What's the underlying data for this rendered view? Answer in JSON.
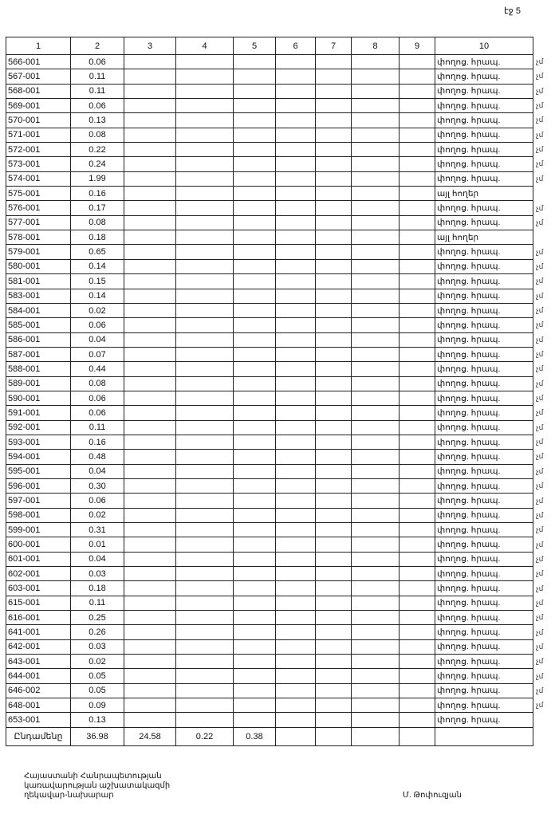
{
  "page_label": "էջ 5",
  "columns": [
    "1",
    "2",
    "3",
    "4",
    "5",
    "6",
    "7",
    "8",
    "9",
    "10"
  ],
  "rows": [
    {
      "code": "566-001",
      "area": "0.06",
      "type": "փողոց. հրապ.",
      "mark": "չմ"
    },
    {
      "code": "567-001",
      "area": "0.11",
      "type": "փողոց. հրապ.",
      "mark": "չմ"
    },
    {
      "code": "568-001",
      "area": "0.11",
      "type": "փողոց. հրապ.",
      "mark": "չմ"
    },
    {
      "code": "569-001",
      "area": "0.06",
      "type": "փողոց. հրապ.",
      "mark": "չմ"
    },
    {
      "code": "570-001",
      "area": "0.13",
      "type": "փողոց. հրապ.",
      "mark": "չմ"
    },
    {
      "code": "571-001",
      "area": "0.08",
      "type": "փողոց. հրապ.",
      "mark": "չմ"
    },
    {
      "code": "572-001",
      "area": "0.22",
      "type": "փողոց. հրապ.",
      "mark": "չմ"
    },
    {
      "code": "573-001",
      "area": "0.24",
      "type": "փողոց. հրապ.",
      "mark": "չմ"
    },
    {
      "code": "574-001",
      "area": "1.99",
      "type": "փողոց. հրապ.",
      "mark": "չմ"
    },
    {
      "code": "575-001",
      "area": "0.16",
      "type": "այլ հողեր",
      "mark": ""
    },
    {
      "code": "576-001",
      "area": "0.17",
      "type": "փողոց. հրապ.",
      "mark": "չմ"
    },
    {
      "code": "577-001",
      "area": "0.08",
      "type": "փողոց. հրապ.",
      "mark": "չմ"
    },
    {
      "code": "578-001",
      "area": "0.18",
      "type": "այլ հողեր",
      "mark": ""
    },
    {
      "code": "579-001",
      "area": "0.65",
      "type": "փողոց. հրապ.",
      "mark": "չմ"
    },
    {
      "code": "580-001",
      "area": "0.14",
      "type": "փողոց. հրապ.",
      "mark": "չմ"
    },
    {
      "code": "581-001",
      "area": "0.15",
      "type": "փողոց. հրապ.",
      "mark": "չմ"
    },
    {
      "code": "583-001",
      "area": "0.14",
      "type": "փողոց. հրապ.",
      "mark": "չմ"
    },
    {
      "code": "584-001",
      "area": "0.02",
      "type": "փողոց. հրապ.",
      "mark": "չմ"
    },
    {
      "code": "585-001",
      "area": "0.06",
      "type": "փողոց. հրապ.",
      "mark": "չմ"
    },
    {
      "code": "586-001",
      "area": "0.04",
      "type": "փողոց. հրապ.",
      "mark": "չմ"
    },
    {
      "code": "587-001",
      "area": "0.07",
      "type": "փողոց. հրապ.",
      "mark": "չմ"
    },
    {
      "code": "588-001",
      "area": "0.44",
      "type": "փողոց. հրապ.",
      "mark": "չմ"
    },
    {
      "code": "589-001",
      "area": "0.08",
      "type": "փողոց. հրապ.",
      "mark": "չմ"
    },
    {
      "code": "590-001",
      "area": "0.06",
      "type": "փողոց. հրապ.",
      "mark": "չմ"
    },
    {
      "code": "591-001",
      "area": "0.06",
      "type": "փողոց. հրապ.",
      "mark": "չմ"
    },
    {
      "code": "592-001",
      "area": "0.11",
      "type": "փողոց. հրապ.",
      "mark": "չմ"
    },
    {
      "code": "593-001",
      "area": "0.16",
      "type": "փողոց. հրապ.",
      "mark": "չմ"
    },
    {
      "code": "594-001",
      "area": "0.48",
      "type": "փողոց. հրապ.",
      "mark": "չմ"
    },
    {
      "code": "595-001",
      "area": "0.04",
      "type": "փողոց. հրապ.",
      "mark": "չմ"
    },
    {
      "code": "596-001",
      "area": "0.30",
      "type": "փողոց. հրապ.",
      "mark": "չմ"
    },
    {
      "code": "597-001",
      "area": "0.06",
      "type": "փողոց. հրապ.",
      "mark": "չմ"
    },
    {
      "code": "598-001",
      "area": "0.02",
      "type": "փողոց. հրապ.",
      "mark": "չմ"
    },
    {
      "code": "599-001",
      "area": "0.31",
      "type": "փողոց. հրապ.",
      "mark": "չմ"
    },
    {
      "code": "600-001",
      "area": "0.01",
      "type": "փողոց. հրապ.",
      "mark": "չմ"
    },
    {
      "code": "601-001",
      "area": "0.04",
      "type": "փողոց. հրապ.",
      "mark": "չմ"
    },
    {
      "code": "602-001",
      "area": "0.03",
      "type": "փողոց. հրապ.",
      "mark": "չմ"
    },
    {
      "code": "603-001",
      "area": "0.18",
      "type": "փողոց. հրապ.",
      "mark": "չմ"
    },
    {
      "code": "615-001",
      "area": "0.11",
      "type": "փողոց. հրապ.",
      "mark": "չմ"
    },
    {
      "code": "616-001",
      "area": "0.25",
      "type": "փողոց. հրապ.",
      "mark": "չմ"
    },
    {
      "code": "641-001",
      "area": "0.26",
      "type": "փողոց. հրապ.",
      "mark": "չմ"
    },
    {
      "code": "642-001",
      "area": "0.03",
      "type": "փողոց. հրապ.",
      "mark": "չմ"
    },
    {
      "code": "643-001",
      "area": "0.02",
      "type": "փողոց. հրապ.",
      "mark": "չմ"
    },
    {
      "code": "644-001",
      "area": "0.05",
      "type": "փողոց. հրապ.",
      "mark": "չմ"
    },
    {
      "code": "646-002",
      "area": "0.05",
      "type": "փողոց. հրապ.",
      "mark": "չմ"
    },
    {
      "code": "648-001",
      "area": "0.09",
      "type": "փողոց. հրապ.",
      "mark": "չմ"
    },
    {
      "code": "653-001",
      "area": "0.13",
      "type": "փողոց. հրապ.",
      "mark": ""
    }
  ],
  "total": {
    "label": "Ընդամենը",
    "col2": "36.98",
    "col3": "24.58",
    "col4": "0.22",
    "col5": "0.38"
  },
  "footer": {
    "title_lines": [
      "Հայաստանի Հանրապետության",
      "կառավարության աշխատակազմի",
      "ղեկավար-նախարար"
    ],
    "signatory": "Մ. Թոփուզյան"
  }
}
